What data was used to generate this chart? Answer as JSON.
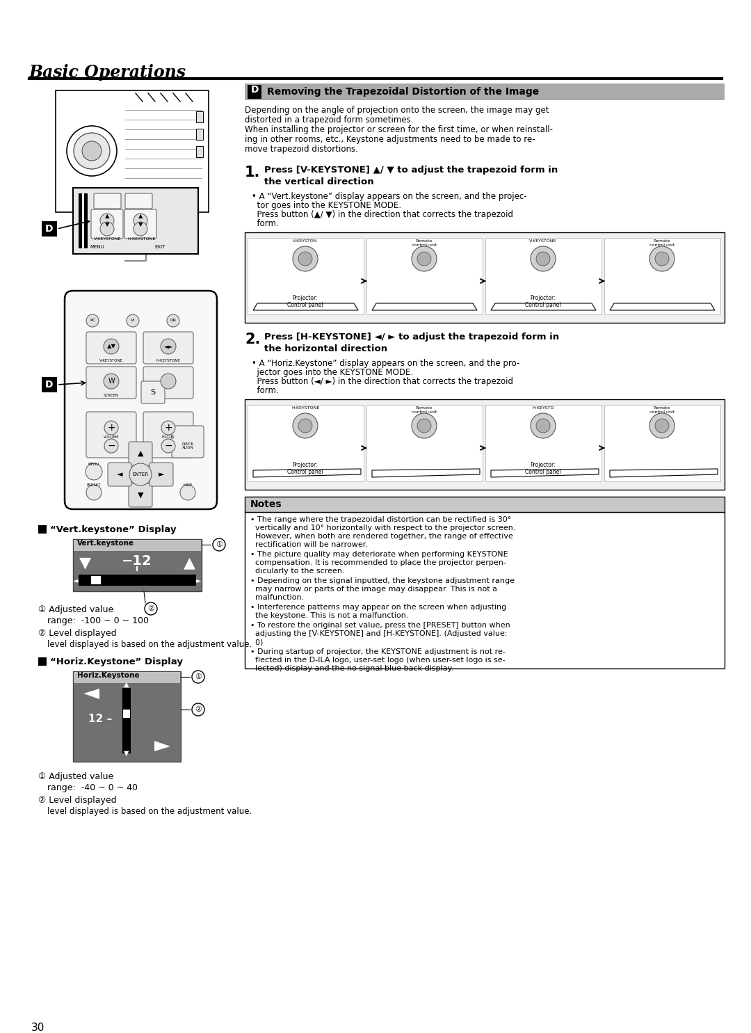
{
  "page_bg": "#ffffff",
  "header_title": "Basic Operations",
  "section_D_title": "Removing the Trapezoidal Distortion of the Image",
  "intro_text_lines": [
    "Depending on the angle of projection onto the screen, the image may get",
    "distorted in a trapezoid form sometimes.",
    "When installing the projector or screen for the first time, or when reinstall-",
    "ing in other rooms, etc., Keystone adjustments need to be made to re-",
    "move trapezoid distortions."
  ],
  "step1_num": "1.",
  "step1_bold_lines": [
    "Press [V-KEYSTONE] ▲/ ▼ to adjust the trapezoid form in",
    "the vertical direction"
  ],
  "step1_bullet_lines": [
    "• A “Vert.keystone” display appears on the screen, and the projec-",
    "  tor goes into the KEYSTONE MODE.",
    "  Press button (▲/ ▼) in the direction that corrects the trapezoid",
    "  form."
  ],
  "step2_num": "2.",
  "step2_bold_lines": [
    "Press [H-KEYSTONE] ◄/ ► to adjust the trapezoid form in",
    "the horizontal direction"
  ],
  "step2_bullet_lines": [
    "• A “Horiz.Keystone” display appears on the screen, and the pro-",
    "  jector goes into the KEYSTONE MODE.",
    "  Press button (◄/ ►) in the direction that corrects the trapezoid",
    "  form."
  ],
  "diag1_labels": [
    "V-KEYSTON",
    "Remote\ncontrol unit",
    "V-KEYSTONE",
    "Remote\ncontrol unit"
  ],
  "diag1_bottom_labels": [
    "Projector:\nControl panel",
    "",
    "Projector:\nControl panel",
    ""
  ],
  "diag2_labels": [
    "H-KEYSTONE",
    "Remote\ncontrol unit",
    "H-KEYSTO",
    "Remote\ncontrol unit"
  ],
  "diag2_bottom_labels": [
    "Projector:\nControl panel",
    "",
    "Projector:\nControl panel",
    ""
  ],
  "vert_display_title": "“Vert.keystone” Display",
  "vert_keystone_label": "Vert.keystone",
  "vert_value": "−12",
  "horiz_display_title": "“Horiz.Keystone” Display",
  "horiz_keystone_label": "Horiz.Keystone",
  "horiz_value": "12 –",
  "notes_title": "Notes",
  "notes_items": [
    "• The range where the trapezoidal distortion can be rectified is 30°\n  vertically and 10° horizontally with respect to the projector screen.\n  However, when both are rendered together, the range of effective\n  rectification will be narrower.",
    "• The picture quality may deteriorate when performing KEYSTONE\n  compensation. It is recommended to place the projector perpen-\n  dicularly to the screen.",
    "• Depending on the signal inputted, the keystone adjustment range\n  may narrow or parts of the image may disappear. This is not a\n  malfunction.",
    "• Interference patterns may appear on the screen when adjusting\n  the keystone. This is not a malfunction.",
    "• To restore the original set value, press the [PRESET] button when\n  adjusting the [V-KEYSTONE] and [H-KEYSTONE]. (Adjusted value:\n  0)",
    "• During startup of projector, the KEYSTONE adjustment is not re-\n  flected in the D-ILA logo, user-set logo (when user-set logo is se-\n  lected) display and the no signal blue back display."
  ],
  "page_number": "30"
}
